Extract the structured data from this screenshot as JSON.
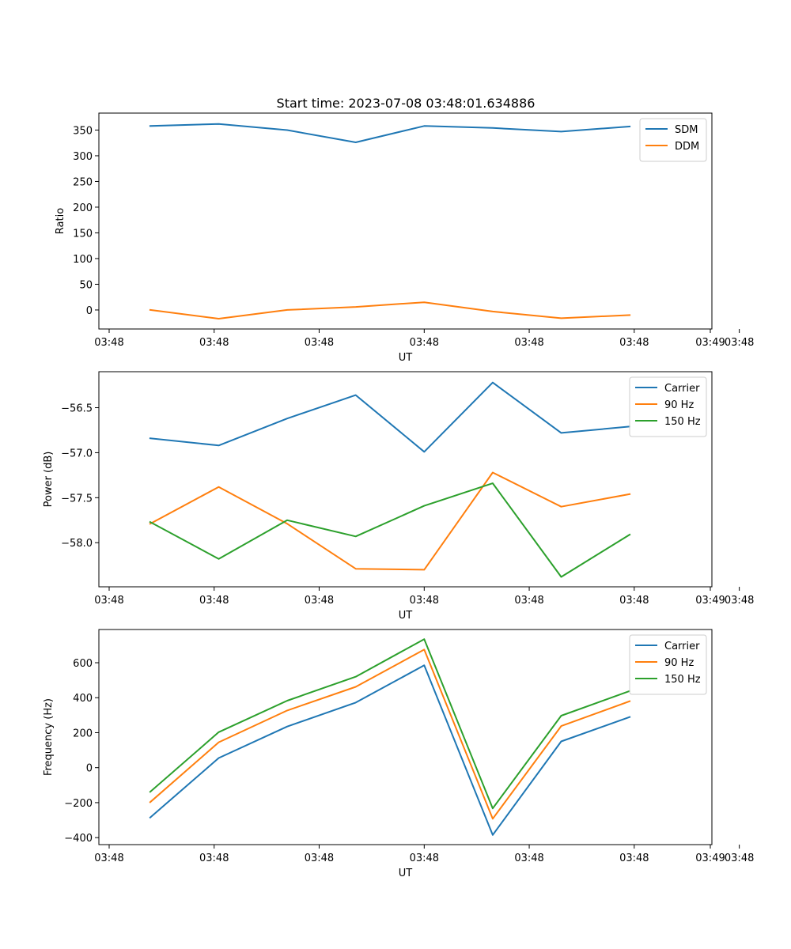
{
  "title": "Start time: 2023-07-08 03:48:01.634886",
  "colors": {
    "blue": "#1f77b4",
    "orange": "#ff7f0e",
    "green": "#2ca02c"
  },
  "chart_data": [
    {
      "type": "line",
      "id": "ratio",
      "title": "Start time: 2023-07-08 03:48:01.634886",
      "xlabel": "UT",
      "ylabel": "Ratio",
      "x": [
        1,
        2,
        3,
        4,
        5,
        6,
        7,
        8
      ],
      "xlim": [
        0.25,
        9.2
      ],
      "xticks": [
        0.4,
        1.933,
        3.466,
        5.0,
        6.533,
        8.066,
        9.6
      ],
      "xtick_values": [
        0.4,
        1.933,
        3.466,
        5.0,
        6.533,
        8.066,
        9.6
      ],
      "xtick_labels": [
        "03:48",
        "03:48",
        "03:48",
        "03:48",
        "03:48",
        "03:48",
        "03:48"
      ],
      "ylim": [
        -37,
        383
      ],
      "yticks": [
        0,
        50,
        100,
        150,
        200,
        250,
        300,
        350
      ],
      "ytick_labels": [
        "0",
        "50",
        "100",
        "150",
        "200",
        "250",
        "300",
        "350"
      ],
      "legend": "top-right",
      "series": [
        {
          "name": "SDM",
          "color": "#1f77b4",
          "values": [
            358,
            362,
            350,
            326,
            358,
            354,
            347,
            357
          ]
        },
        {
          "name": "DDM",
          "color": "#ff7f0e",
          "values": [
            0,
            -17,
            0,
            6,
            15,
            -3,
            -16,
            -10
          ]
        }
      ]
    },
    {
      "type": "line",
      "id": "power",
      "title": "",
      "xlabel": "UT",
      "ylabel": "Power (dB)",
      "x": [
        1,
        2,
        3,
        4,
        5,
        6,
        7,
        8
      ],
      "xlim": [
        0.25,
        9.2
      ],
      "xticks": [
        0.4,
        1.933,
        3.466,
        5.0,
        6.533,
        8.066,
        9.6
      ],
      "xtick_labels": [
        "03:48",
        "03:48",
        "03:48",
        "03:48",
        "03:48",
        "03:48",
        "03:48"
      ],
      "ylim": [
        -58.49,
        -56.1
      ],
      "yticks": [
        -58.0,
        -57.5,
        -57.0,
        -56.5
      ],
      "ytick_labels": [
        "−58.0",
        "−57.5",
        "−57.0",
        "−56.5"
      ],
      "legend": "top-right",
      "series": [
        {
          "name": "Carrier",
          "color": "#1f77b4",
          "values": [
            -56.84,
            -56.92,
            -56.62,
            -56.36,
            -56.99,
            -56.22,
            -56.78,
            -56.71
          ]
        },
        {
          "name": "90 Hz",
          "color": "#ff7f0e",
          "values": [
            -57.79,
            -57.38,
            -57.79,
            -58.29,
            -58.3,
            -57.22,
            -57.6,
            -57.46
          ]
        },
        {
          "name": "150 Hz",
          "color": "#2ca02c",
          "values": [
            -57.77,
            -58.18,
            -57.75,
            -57.93,
            -57.59,
            -57.34,
            -58.38,
            -57.91
          ]
        }
      ]
    },
    {
      "type": "line",
      "id": "frequency",
      "title": "",
      "xlabel": "UT",
      "ylabel": "Frequency (Hz)",
      "x": [
        1,
        2,
        3,
        4,
        5,
        6,
        7,
        8
      ],
      "xlim": [
        0.25,
        9.2
      ],
      "xticks": [
        0.4,
        1.933,
        3.466,
        5.0,
        6.533,
        8.066,
        9.6
      ],
      "xtick_labels": [
        "03:48",
        "03:48",
        "03:48",
        "03:48",
        "03:48",
        "03:48",
        "03:48"
      ],
      "ylim": [
        -440,
        790
      ],
      "yticks": [
        -400,
        -200,
        0,
        200,
        400,
        600
      ],
      "ytick_labels": [
        "−400",
        "−200",
        "0",
        "200",
        "400",
        "600"
      ],
      "legend": "top-right",
      "series": [
        {
          "name": "Carrier",
          "color": "#1f77b4",
          "values": [
            -285,
            55,
            235,
            372,
            585,
            -385,
            150,
            290
          ]
        },
        {
          "name": "90 Hz",
          "color": "#ff7f0e",
          "values": [
            -197,
            145,
            327,
            462,
            675,
            -292,
            238,
            380
          ]
        },
        {
          "name": "150 Hz",
          "color": "#2ca02c",
          "values": [
            -138,
            203,
            383,
            520,
            735,
            -233,
            297,
            438
          ]
        }
      ]
    }
  ]
}
